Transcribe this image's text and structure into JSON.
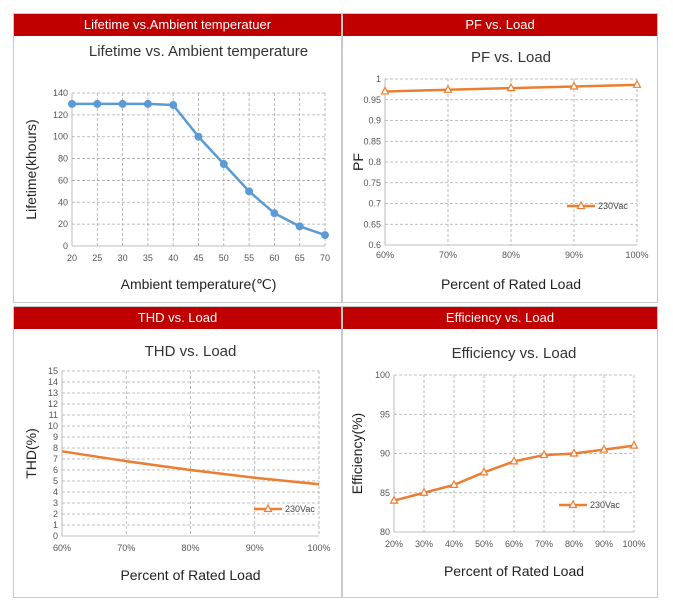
{
  "panels": {
    "p1": {
      "header": "Lifetime vs.Ambient temperatuer"
    },
    "p2": {
      "header": "PF vs. Load"
    },
    "p3": {
      "header": "THD vs. Load"
    },
    "p4": {
      "header": "Efficiency vs. Load"
    }
  },
  "colors": {
    "header_bg": "#c00000",
    "lifetime_line": "#5b9bd5",
    "load_line": "#ed7d31",
    "grid": "#aaaaaa"
  },
  "chart_data": [
    {
      "type": "line",
      "title": "Lifetime vs. Ambient temperature",
      "xlabel": "Ambient temperature(℃)",
      "ylabel": "Lifetime(khours)",
      "x": [
        20,
        25,
        30,
        35,
        40,
        45,
        50,
        55,
        60,
        65,
        70
      ],
      "series": [
        {
          "values": [
            130,
            130,
            130,
            130,
            129,
            100,
            75,
            50,
            30,
            18,
            10
          ]
        }
      ],
      "xticks": [
        "20",
        "25",
        "30",
        "35",
        "40",
        "45",
        "50",
        "55",
        "60",
        "65",
        "70"
      ],
      "yticks": [
        "0",
        "20",
        "40",
        "60",
        "80",
        "100",
        "120",
        "140"
      ],
      "xlim": [
        20,
        70
      ],
      "ylim": [
        0,
        140
      ],
      "grid": true,
      "marker": "circle"
    },
    {
      "type": "line",
      "title": "PF vs. Load",
      "xlabel": "Percent of Rated Load",
      "ylabel": "PF",
      "x": [
        60,
        70,
        80,
        90,
        100
      ],
      "series": [
        {
          "name": "230Vac",
          "values": [
            0.97,
            0.974,
            0.978,
            0.982,
            0.986
          ]
        }
      ],
      "xticks": [
        "60%",
        "70%",
        "80%",
        "90%",
        "100%"
      ],
      "yticks": [
        "0.6",
        "0.65",
        "0.7",
        "0.75",
        "0.8",
        "0.85",
        "0.9",
        "0.95",
        "1"
      ],
      "xlim": [
        60,
        100
      ],
      "ylim": [
        0.6,
        1.0
      ],
      "grid": true,
      "legend": "bottom-right",
      "marker": "triangle"
    },
    {
      "type": "line",
      "title": "THD vs. Load",
      "xlabel": "Percent of Rated Load",
      "ylabel": "THD(%)",
      "x": [
        60,
        70,
        80,
        90,
        100
      ],
      "series": [
        {
          "name": "230Vac",
          "values": [
            7.7,
            6.8,
            6.0,
            5.3,
            4.7
          ]
        }
      ],
      "xticks": [
        "60%",
        "70%",
        "80%",
        "90%",
        "100%"
      ],
      "yticks": [
        "0",
        "1",
        "2",
        "3",
        "4",
        "5",
        "6",
        "7",
        "8",
        "9",
        "10",
        "11",
        "12",
        "13",
        "14",
        "15"
      ],
      "xlim": [
        60,
        100
      ],
      "ylim": [
        0,
        15
      ],
      "grid": true,
      "legend": "bottom-right",
      "marker": "none"
    },
    {
      "type": "line",
      "title": "Efficiency vs. Load",
      "xlabel": "Percent of Rated Load",
      "ylabel": "Efficiency(%)",
      "x": [
        20,
        30,
        40,
        50,
        60,
        70,
        80,
        90,
        100
      ],
      "series": [
        {
          "name": "230Vac",
          "values": [
            84,
            85,
            86,
            87.6,
            89,
            89.8,
            90,
            90.5,
            91
          ]
        }
      ],
      "xticks": [
        "20%",
        "30%",
        "40%",
        "50%",
        "60%",
        "70%",
        "80%",
        "90%",
        "100%"
      ],
      "yticks": [
        "80",
        "85",
        "90",
        "95",
        "100"
      ],
      "xlim": [
        20,
        100
      ],
      "ylim": [
        80,
        100
      ],
      "grid": true,
      "legend": "bottom-right",
      "marker": "triangle"
    }
  ]
}
